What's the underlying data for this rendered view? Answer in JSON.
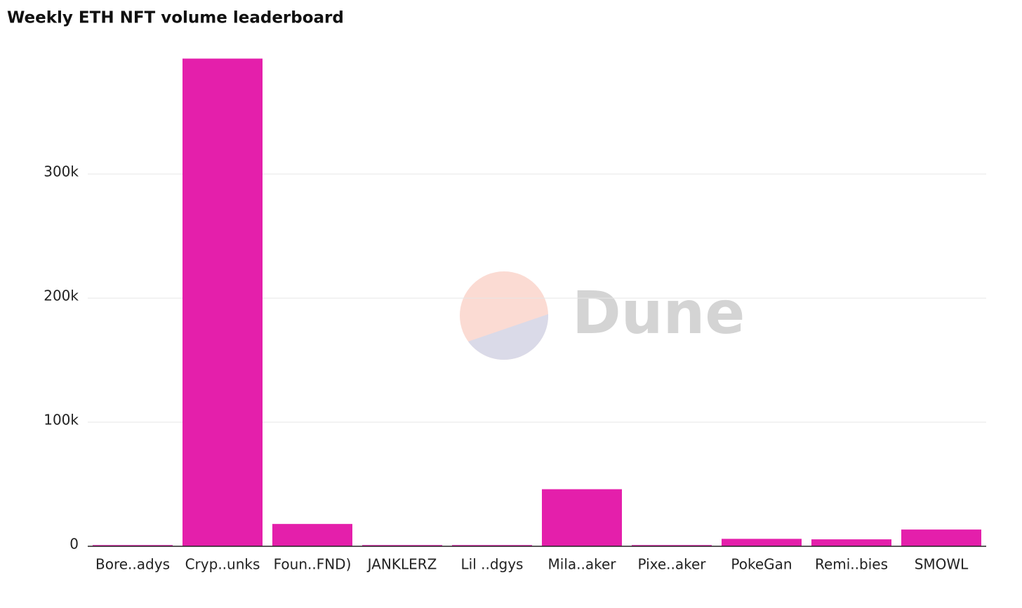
{
  "chart_data": {
    "type": "bar",
    "title": "Weekly ETH NFT volume leaderboard",
    "watermark": "Dune",
    "categories": [
      "Bore..adys",
      "Cryp..unks",
      "Foun..FND)",
      "JANKLERZ",
      "Lil ..dgys",
      "Mila..aker",
      "Pixe..aker",
      "PokeGan",
      "Remi..bies",
      "SMOWL"
    ],
    "values": [
      1000,
      393000,
      18000,
      1000,
      1000,
      46000,
      1000,
      6000,
      5600,
      13500
    ],
    "color": "#e41fab",
    "ylim": [
      0,
      395000
    ],
    "yticks": [
      0,
      {
        "value": 100000,
        "label": "100k"
      },
      {
        "value": 200000,
        "label": "200k"
      },
      {
        "value": 300000,
        "label": "300k"
      }
    ],
    "grid": true
  }
}
